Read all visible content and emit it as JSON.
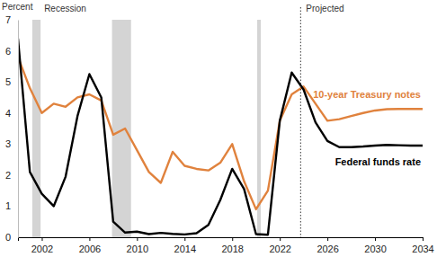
{
  "chart_data": {
    "type": "line",
    "y_label": "Percent",
    "x": [
      2000,
      2001,
      2002,
      2003,
      2004,
      2005,
      2006,
      2007,
      2008,
      2009,
      2010,
      2011,
      2012,
      2013,
      2014,
      2015,
      2016,
      2017,
      2018,
      2019,
      2020,
      2021,
      2022,
      2023,
      2024,
      2025,
      2026,
      2027,
      2028,
      2029,
      2030,
      2031,
      2032,
      2033,
      2034
    ],
    "series": [
      {
        "name": "10-year Treasury notes",
        "color": "#e0823d",
        "values": [
          5.8,
          4.8,
          4.0,
          4.3,
          4.2,
          4.5,
          4.6,
          4.4,
          3.3,
          3.5,
          2.8,
          2.1,
          1.75,
          2.75,
          2.3,
          2.2,
          2.15,
          2.4,
          3.0,
          1.8,
          0.9,
          1.5,
          3.75,
          4.6,
          4.85,
          4.3,
          3.75,
          3.8,
          3.9,
          4.0,
          4.08,
          4.12,
          4.13,
          4.13,
          4.13
        ]
      },
      {
        "name": "Federal funds rate",
        "color": "#000000",
        "values": [
          6.4,
          2.1,
          1.4,
          1.0,
          1.95,
          3.9,
          5.25,
          4.5,
          0.5,
          0.15,
          0.18,
          0.1,
          0.14,
          0.11,
          0.09,
          0.13,
          0.4,
          1.2,
          2.2,
          1.55,
          0.1,
          0.08,
          3.75,
          5.3,
          4.75,
          3.7,
          3.1,
          2.9,
          2.9,
          2.92,
          2.95,
          2.97,
          2.96,
          2.95,
          2.95
        ]
      }
    ],
    "recession_label": "Recession",
    "recessions": [
      {
        "start": 2001.2,
        "end": 2001.9
      },
      {
        "start": 2007.9,
        "end": 2009.5
      },
      {
        "start": 2020.1,
        "end": 2020.4
      }
    ],
    "projection": {
      "label": "Projected",
      "x": 2023.75
    },
    "xlim": [
      2000,
      2034
    ],
    "xticks": [
      2002,
      2006,
      2010,
      2014,
      2018,
      2022,
      2026,
      2030,
      2034
    ],
    "ylim": [
      0,
      7
    ],
    "yticks": [
      0,
      1,
      2,
      3,
      4,
      5,
      6,
      7
    ],
    "grid": false
  }
}
